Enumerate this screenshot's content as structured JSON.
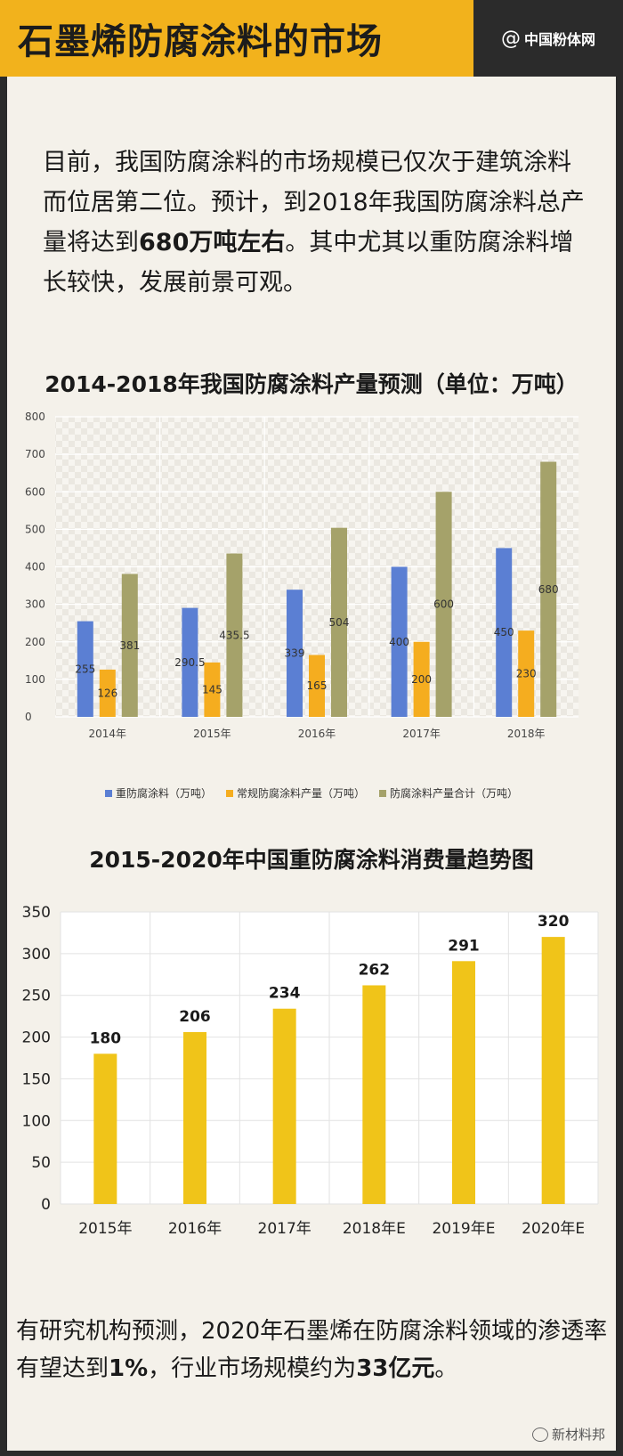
{
  "header": {
    "title": "石墨烯防腐涂料的市场",
    "logo_text": "中国粉体网",
    "logo_at": "@"
  },
  "intro": {
    "part1": "目前，我国防腐涂料的市场规模已仅次于建筑涂料而位居第二位。预计，到2018年我国防腐涂料总产量将达到",
    "highlight": "680万吨左右",
    "part2": "。其中尤其以重防腐涂料增长较快，发展前景可观。"
  },
  "outro": {
    "part1": "有研究机构预测，2020年石墨烯在防腐涂料领域的渗透率有望达到",
    "highlight1": "1%",
    "part2": "，行业市场规模约为",
    "highlight2": "33亿元",
    "part3": "。"
  },
  "watermark": "新材料邦",
  "colors": {
    "header_bg": "#f2b21c",
    "logo_bg": "#2b2b2b",
    "series_blue": "#5b7fd3",
    "series_orange": "#f5ad1f",
    "series_olive": "#a5a26a",
    "bar2": "#f0c419"
  },
  "chart_data": [
    {
      "type": "bar",
      "title": "2014-2018年我国防腐涂料产量预测（单位：万吨）",
      "categories": [
        "2014年",
        "2015年",
        "2016年",
        "2017年",
        "2018年"
      ],
      "series": [
        {
          "name": "重防腐涂料（万吨）",
          "values": [
            255,
            290.5,
            339,
            400,
            450
          ],
          "color": "#5b7fd3",
          "labels": [
            "255",
            "290.5",
            "339",
            "400",
            "450"
          ]
        },
        {
          "name": "常规防腐涂料产量（万吨）",
          "values": [
            126,
            145,
            165,
            200,
            230
          ],
          "color": "#f5ad1f",
          "labels": [
            "126",
            "145",
            "165",
            "200",
            "230"
          ]
        },
        {
          "name": "防腐涂料产量合计（万吨）",
          "values": [
            381,
            435.5,
            504,
            600,
            680
          ],
          "color": "#a5a26a",
          "labels": [
            "381",
            "435.5",
            "504",
            "600",
            "680"
          ]
        }
      ],
      "yticks": [
        "0",
        "100",
        "200",
        "300",
        "400",
        "500",
        "600",
        "700",
        "800"
      ],
      "ylim": [
        0,
        800
      ],
      "legend": "bottom",
      "grid": true
    },
    {
      "type": "bar",
      "title": "2015-2020年中国重防腐涂料消费量趋势图",
      "categories": [
        "2015年",
        "2016年",
        "2017年",
        "2018年E",
        "2019年E",
        "2020年E"
      ],
      "values": [
        180,
        206,
        234,
        262,
        291,
        320
      ],
      "labels": [
        "180",
        "206",
        "234",
        "262",
        "291",
        "320"
      ],
      "yticks": [
        "0",
        "50",
        "100",
        "150",
        "200",
        "250",
        "300",
        "350"
      ],
      "ylim": [
        0,
        350
      ],
      "color": "#f0c419",
      "grid": true
    }
  ]
}
